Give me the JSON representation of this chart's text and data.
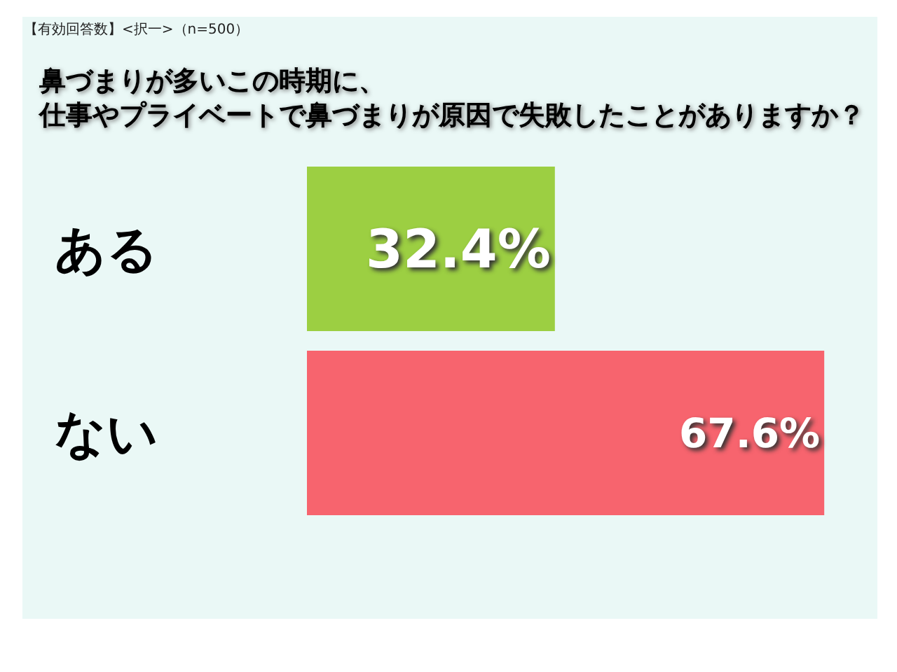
{
  "chart_data": {
    "type": "bar",
    "orientation": "horizontal",
    "title": "鼻づまりが多いこの時期に、仕事やプライベートで鼻づまりが原因で失敗したことがありますか？",
    "annotations": [
      "【有効回答数】<択一>（n=500）"
    ],
    "categories": [
      "ある",
      "ない"
    ],
    "values": [
      32.4,
      67.6
    ],
    "colors": [
      "#9ccf42",
      "#f7646e"
    ],
    "value_labels": [
      "32.4%",
      "67.6%"
    ],
    "tick_labels": "y"
  }
}
